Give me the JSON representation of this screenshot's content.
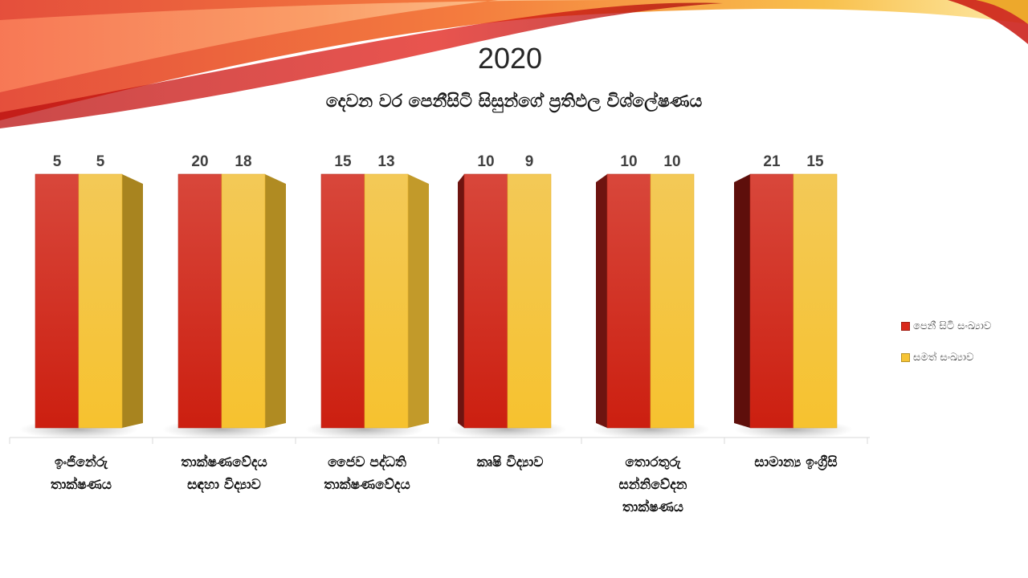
{
  "title": "2020",
  "subtitle": "දෙවන වර පෙනීසිටි සිසුන්ගේ ප්‍රතිඵල විශ්ලේෂණය",
  "chart_data": {
    "type": "bar",
    "categories": [
      "ඉංජිනේරු\nතාක්ෂණය",
      "තාක්ෂණවේදය\nසඳහා විද්‍යාව",
      "ජෛව පද්ධති\nතාක්ෂණවේදය",
      "කෘෂි විද්‍යාව",
      "තොරතුරු\nසන්නිවේදන\nතාක්ෂණය",
      "සාමාන්‍ය ඉංග්‍රීසි"
    ],
    "series": [
      {
        "name": "පෙනී සිටි සංඛ්‍යාව",
        "values": [
          5,
          20,
          15,
          10,
          10,
          21
        ],
        "color": "#d92a1c"
      },
      {
        "name": "සමත් සංඛ්‍යාව",
        "values": [
          5,
          18,
          13,
          9,
          10,
          15
        ],
        "color": "#f6c435"
      }
    ],
    "data_labels": true,
    "grid": false,
    "legend": "right",
    "style": "3d-columns-equal-height"
  }
}
